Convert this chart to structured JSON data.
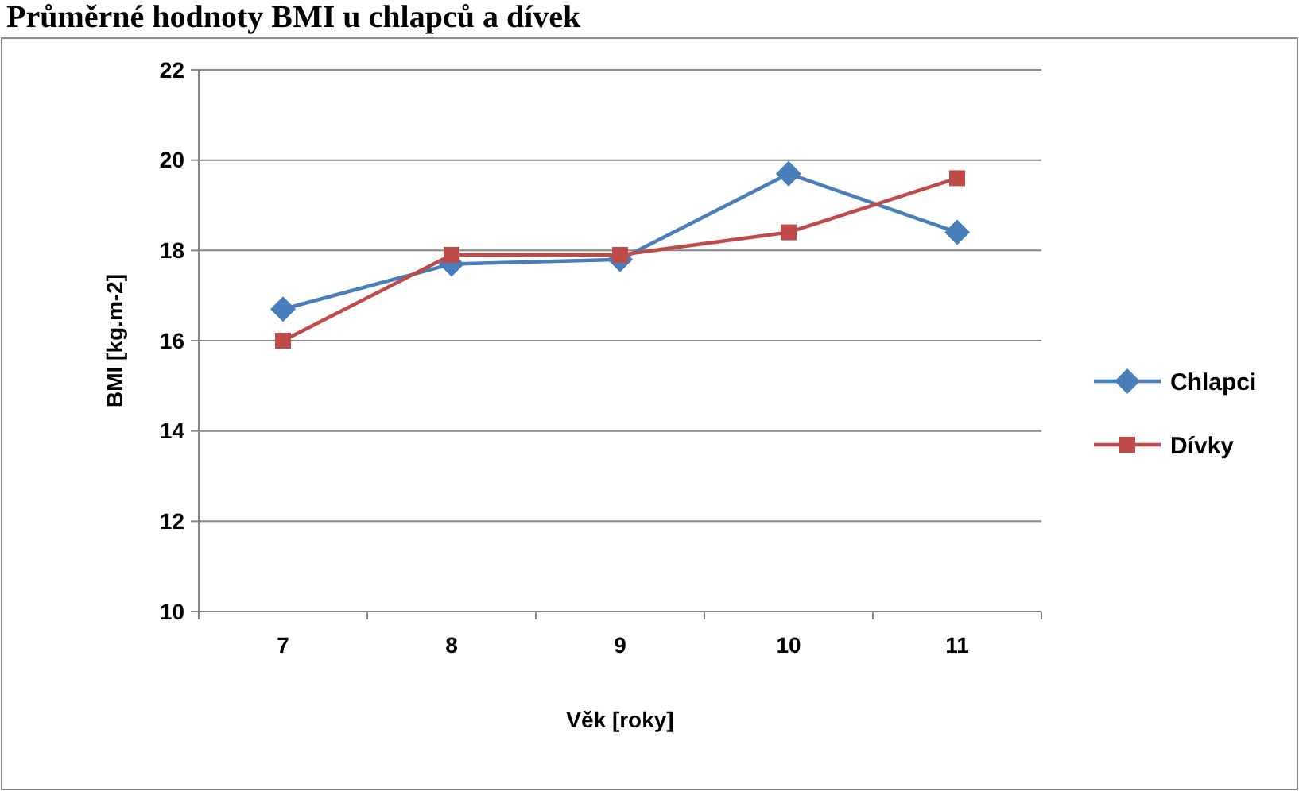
{
  "chart_data": {
    "type": "line",
    "title": "Průměrné hodnoty BMI u chlapců a dívek",
    "xlabel": "Věk [roky]",
    "ylabel": "BMI [kg.m-2]",
    "categories": [
      "7",
      "8",
      "9",
      "10",
      "11"
    ],
    "series": [
      {
        "name": "Chlapci",
        "color": "#4a7ebb",
        "marker": "diamond",
        "values": [
          16.7,
          17.7,
          17.8,
          19.7,
          18.4
        ]
      },
      {
        "name": "Dívky",
        "color": "#be4b48",
        "marker": "square",
        "values": [
          16.0,
          17.9,
          17.9,
          18.4,
          19.6
        ]
      }
    ],
    "ylim": [
      10,
      22
    ],
    "yticks": [
      10,
      12,
      14,
      16,
      18,
      20,
      22
    ],
    "grid": "y",
    "legend": "right"
  }
}
